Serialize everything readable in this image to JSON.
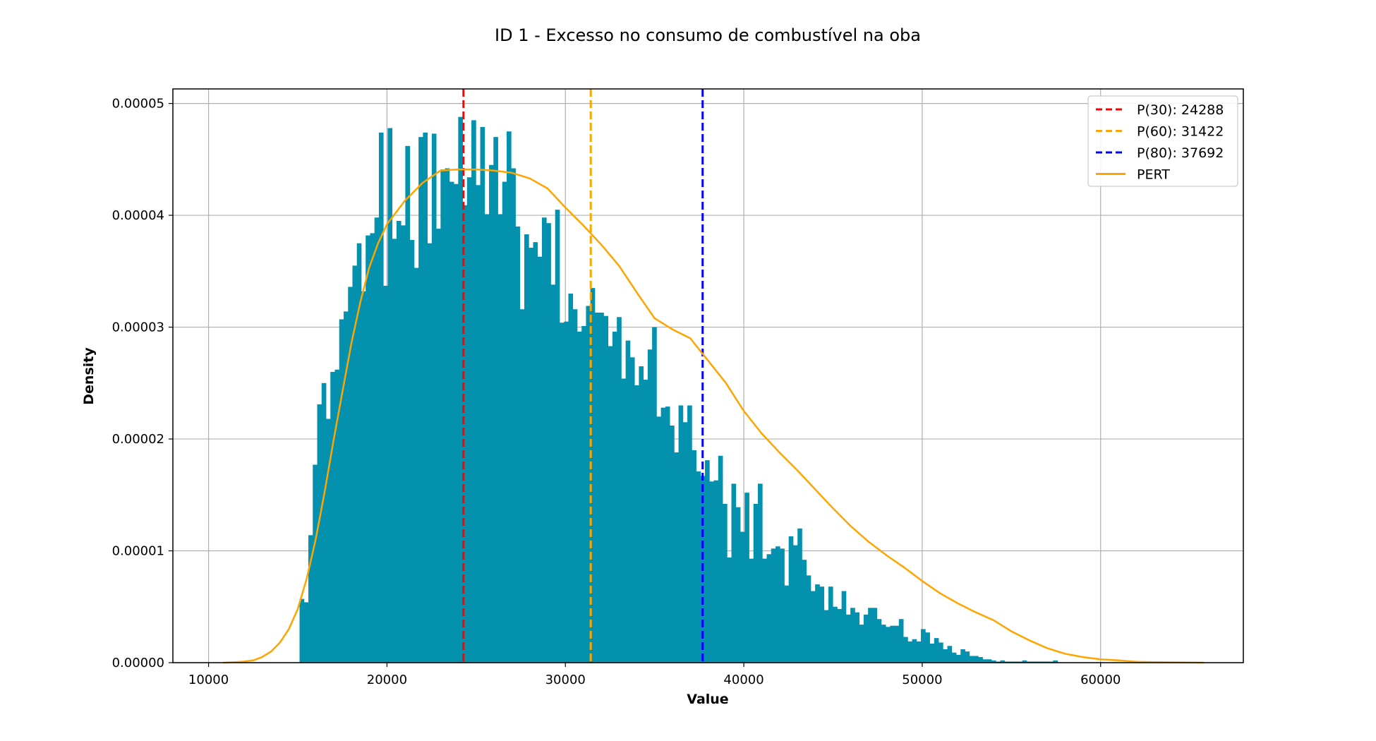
{
  "chart_data": {
    "type": "bar",
    "title": "ID 1 - Excesso no consumo de combustível na oba",
    "xlabel": "Value",
    "ylabel": "Density",
    "xlim": [
      8000,
      68000
    ],
    "ylim": [
      0,
      5.13e-05
    ],
    "x_ticks": [
      10000,
      20000,
      30000,
      40000,
      50000,
      60000
    ],
    "y_ticks": [
      0,
      1e-05,
      2e-05,
      3e-05,
      4e-05,
      5e-05
    ],
    "x_tick_labels": [
      "10000",
      "20000",
      "30000",
      "40000",
      "50000",
      "60000"
    ],
    "y_tick_labels": [
      "0.00000",
      "0.00001",
      "0.00002",
      "0.00003",
      "0.00004",
      "0.00005"
    ],
    "grid": true,
    "legend_position": "top-right",
    "histogram": {
      "bin_start": 15100,
      "bin_width": 247,
      "color": "#0391AE",
      "density": [
        5.7e-06,
        5.4e-06,
        1.14e-05,
        1.77e-05,
        2.31e-05,
        2.5e-05,
        2.18e-05,
        2.6e-05,
        2.62e-05,
        3.07e-05,
        3.14e-05,
        3.36e-05,
        3.55e-05,
        3.75e-05,
        3.32e-05,
        3.82e-05,
        3.84e-05,
        3.98e-05,
        4.74e-05,
        3.37e-05,
        4.78e-05,
        3.79e-05,
        3.95e-05,
        3.91e-05,
        4.62e-05,
        3.78e-05,
        3.53e-05,
        4.7e-05,
        4.74e-05,
        3.75e-05,
        4.73e-05,
        3.88e-05,
        4.41e-05,
        4.42e-05,
        4.3e-05,
        4.28e-05,
        4.88e-05,
        4.09e-05,
        4.34e-05,
        4.85e-05,
        4.27e-05,
        4.79e-05,
        4.01e-05,
        4.45e-05,
        4.7e-05,
        4.01e-05,
        4.3e-05,
        4.75e-05,
        4.42e-05,
        3.9e-05,
        3.16e-05,
        3.83e-05,
        3.71e-05,
        3.76e-05,
        3.63e-05,
        3.98e-05,
        3.93e-05,
        3.38e-05,
        4.05e-05,
        3.04e-05,
        3.05e-05,
        3.3e-05,
        3.16e-05,
        2.96e-05,
        3.01e-05,
        3.19e-05,
        3.35e-05,
        3.13e-05,
        3.13e-05,
        3.1e-05,
        2.83e-05,
        2.96e-05,
        3.09e-05,
        2.54e-05,
        2.88e-05,
        2.73e-05,
        2.48e-05,
        2.65e-05,
        2.53e-05,
        2.8e-05,
        3e-05,
        2.2e-05,
        2.28e-05,
        2.29e-05,
        2.12e-05,
        1.88e-05,
        2.3e-05,
        2.15e-05,
        2.3e-05,
        1.9e-05,
        1.71e-05,
        1.67e-05,
        1.81e-05,
        1.62e-05,
        1.63e-05,
        1.85e-05,
        1.42e-05,
        9.4e-06,
        1.6e-05,
        1.39e-05,
        1.17e-05,
        1.52e-05,
        9.3e-06,
        1.42e-05,
        1.6e-05,
        9.3e-06,
        9.7e-06,
        1.02e-05,
        1.04e-05,
        1.02e-05,
        6.9e-06,
        1.13e-05,
        1.05e-05,
        1.2e-05,
        9.2e-06,
        7.8e-06,
        6.4e-06,
        7e-06,
        6.8e-06,
        4.7e-06,
        6.8e-06,
        5e-06,
        4.8e-06,
        6.4e-06,
        4.3e-06,
        4.9e-06,
        4.5e-06,
        3.4e-06,
        4.3e-06,
        4.9e-06,
        4.9e-06,
        3.9e-06,
        3.4e-06,
        3.2e-06,
        3.3e-06,
        3.3e-06,
        3.9e-06,
        2.3e-06,
        1.9e-06,
        2.1e-06,
        1.9e-06,
        3e-06,
        2.7e-06,
        1.7e-06,
        2.2e-06,
        1.8e-06,
        1.2e-06,
        1.5e-06,
        9e-07,
        7e-07,
        1.2e-06,
        1e-06,
        6e-07,
        6e-07,
        5e-07,
        3e-07,
        3e-07,
        2e-07,
        1e-07,
        2e-07,
        1e-07,
        1e-07,
        1e-07,
        1e-07,
        2e-07,
        1e-07,
        1e-07,
        1e-07,
        1e-07,
        1e-07,
        1e-07,
        2e-07
      ]
    },
    "pert_curve": {
      "name": "PERT",
      "color": "#FFA500",
      "x": [
        10800,
        11500,
        12000,
        12500,
        13000,
        13500,
        14000,
        14500,
        15000,
        15500,
        16000,
        16500,
        17000,
        17500,
        18000,
        18500,
        19000,
        19500,
        20000,
        21000,
        22000,
        23000,
        24000,
        25000,
        26000,
        27000,
        28000,
        29000,
        30000,
        31000,
        32000,
        33000,
        34000,
        35000,
        36000,
        37000,
        38000,
        39000,
        40000,
        41000,
        42000,
        43000,
        44000,
        45000,
        46000,
        47000,
        48000,
        49000,
        50000,
        51000,
        52000,
        53000,
        54000,
        55000,
        56000,
        57000,
        58000,
        59000,
        60000,
        61000,
        62000,
        63000,
        64000,
        65000,
        65800
      ],
      "y": [
        0,
        5e-08,
        1e-07,
        2e-07,
        5e-07,
        1e-06,
        1.8e-06,
        3e-06,
        4.8e-06,
        7.5e-06,
        1.1e-05,
        1.52e-05,
        1.98e-05,
        2.42e-05,
        2.85e-05,
        3.22e-05,
        3.53e-05,
        3.75e-05,
        3.92e-05,
        4.13e-05,
        4.29e-05,
        4.4e-05,
        4.41e-05,
        4.41e-05,
        4.4e-05,
        4.38e-05,
        4.33e-05,
        4.24e-05,
        4.07e-05,
        3.91e-05,
        3.74e-05,
        3.55e-05,
        3.31e-05,
        3.08e-05,
        2.98e-05,
        2.9e-05,
        2.7e-05,
        2.5e-05,
        2.25e-05,
        2.05e-05,
        1.88e-05,
        1.72e-05,
        1.55e-05,
        1.38e-05,
        1.22e-05,
        1.08e-05,
        9.6e-06,
        8.5e-06,
        7.3e-06,
        6.2e-06,
        5.3e-06,
        4.5e-06,
        3.8e-06,
        2.8e-06,
        2e-06,
        1.3e-06,
        8e-07,
        5e-07,
        3e-07,
        2e-07,
        8e-08,
        5e-08,
        3e-08,
        1e-08,
        0
      ]
    },
    "percentiles": [
      {
        "label": "P(30): 24288",
        "value": 24288,
        "color": "#FF0000"
      },
      {
        "label": "P(60): 31422",
        "value": 31422,
        "color": "#FFA500"
      },
      {
        "label": "P(80): 37692",
        "value": 37692,
        "color": "#0000FF"
      }
    ],
    "legend": [
      {
        "label": "P(30): 24288",
        "color": "#FF0000",
        "style": "dashed"
      },
      {
        "label": "P(60): 31422",
        "color": "#FFA500",
        "style": "dashed"
      },
      {
        "label": "P(80): 37692",
        "color": "#0000FF",
        "style": "dashed"
      },
      {
        "label": "PERT",
        "color": "#FFA500",
        "style": "solid"
      }
    ]
  }
}
